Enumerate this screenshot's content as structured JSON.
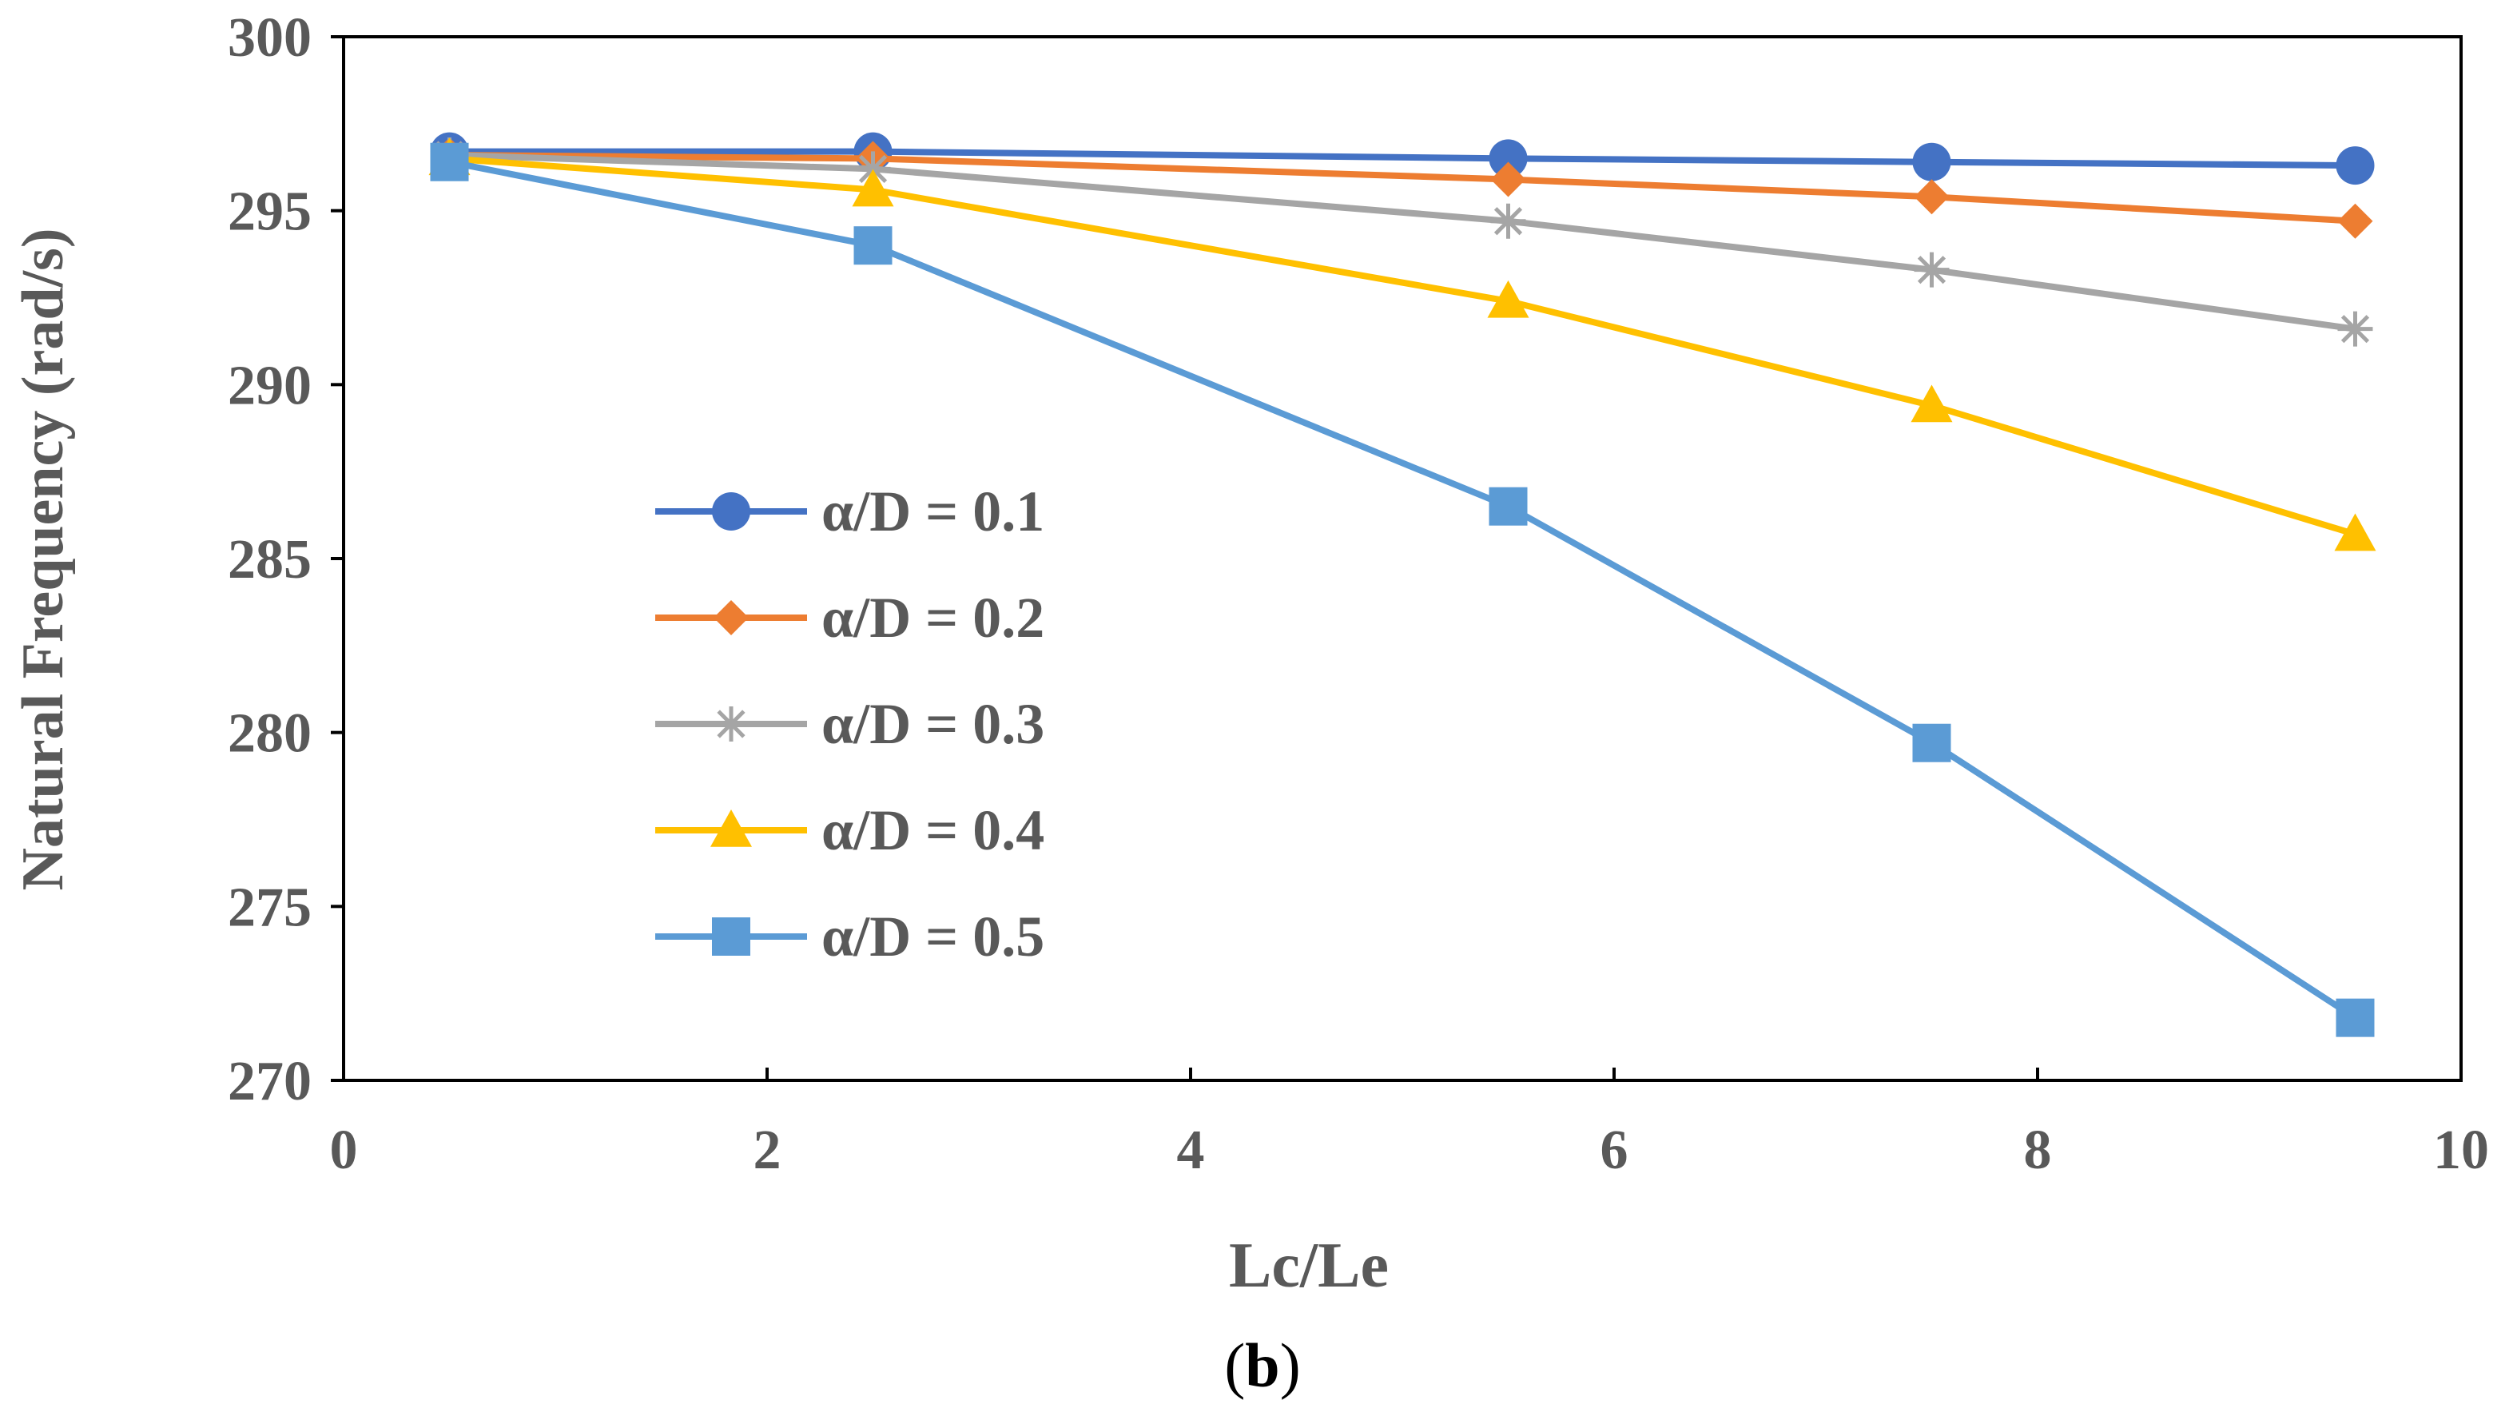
{
  "chart_data": {
    "type": "line",
    "title": "",
    "caption": {
      "open": "(",
      "letter": "b",
      "close": ")"
    },
    "xlabel": "Lc/Le",
    "ylabel": "Natural Frequency (rad/s)",
    "xlim": [
      0,
      10
    ],
    "ylim": [
      270,
      300
    ],
    "xticks": [
      0,
      2,
      4,
      6,
      8,
      10
    ],
    "yticks": [
      270,
      275,
      280,
      285,
      290,
      295,
      300
    ],
    "grid": false,
    "legend_position": "center-left",
    "x": [
      0.5,
      2.5,
      5.5,
      7.5,
      9.5
    ],
    "series": [
      {
        "name": "α/D = 0.1",
        "marker": "circle",
        "color": "#4472C4",
        "values": [
          296.7,
          296.7,
          296.5,
          296.4,
          296.3
        ]
      },
      {
        "name": "α/D = 0.2",
        "marker": "diamond",
        "color": "#ED7D31",
        "values": [
          296.6,
          296.5,
          295.9,
          295.4,
          294.7
        ]
      },
      {
        "name": "α/D = 0.3",
        "marker": "asterisk",
        "color": "#A5A5A5",
        "values": [
          296.6,
          296.2,
          294.7,
          293.3,
          291.6
        ]
      },
      {
        "name": "α/D = 0.4",
        "marker": "triangle",
        "color": "#FFC000",
        "values": [
          296.5,
          295.6,
          292.4,
          289.4,
          285.7
        ]
      },
      {
        "name": "α/D = 0.5",
        "marker": "square",
        "color": "#5B9BD5",
        "values": [
          296.4,
          294.0,
          286.5,
          279.7,
          271.8
        ]
      }
    ]
  }
}
